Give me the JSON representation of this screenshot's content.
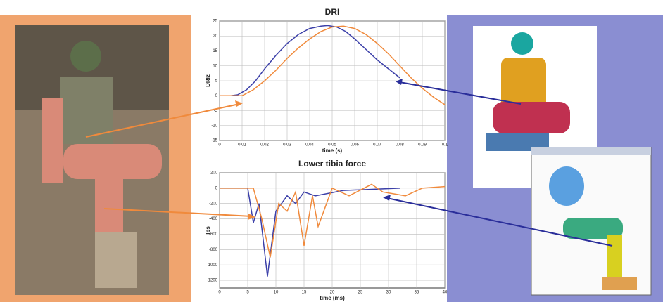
{
  "chart_data": [
    {
      "type": "line",
      "title": "DRI",
      "x_label": "time (s)",
      "y_label": "DRIz",
      "xlim": [
        0,
        0.1
      ],
      "xticks": [
        0,
        0.01,
        0.02,
        0.03,
        0.04,
        0.05,
        0.06,
        0.07,
        0.08,
        0.09,
        0.1
      ],
      "ylim": [
        -15,
        25
      ],
      "yticks": [
        25,
        20,
        15,
        10,
        5,
        0,
        -5,
        -10,
        -15
      ],
      "grid": true,
      "series": [
        {
          "color": "#3b3fa8",
          "x": [
            0,
            0.005,
            0.008,
            0.012,
            0.016,
            0.02,
            0.025,
            0.03,
            0.035,
            0.04,
            0.045,
            0.048,
            0.052,
            0.056,
            0.06,
            0.065,
            0.07,
            0.075,
            0.08
          ],
          "values": [
            0,
            0,
            0.3,
            2,
            5,
            9,
            13.5,
            17.5,
            20.5,
            22.5,
            23.3,
            23.5,
            23,
            21.5,
            19,
            15.5,
            12,
            9,
            6
          ]
        },
        {
          "color": "#f08a3c",
          "x": [
            0,
            0.01,
            0.015,
            0.02,
            0.025,
            0.03,
            0.035,
            0.04,
            0.045,
            0.05,
            0.055,
            0.06,
            0.065,
            0.07,
            0.075,
            0.08,
            0.085,
            0.09,
            0.095,
            0.1
          ],
          "values": [
            0,
            0,
            2,
            5,
            8.5,
            12.5,
            16,
            19,
            21.5,
            23,
            23.3,
            22.5,
            20.5,
            17.5,
            14,
            10,
            6,
            2.5,
            -0.5,
            -3
          ]
        }
      ]
    },
    {
      "type": "line",
      "title": "Lower tibia force",
      "x_label": "time (ms)",
      "y_label": "lbs",
      "xlim": [
        0,
        40
      ],
      "xticks": [
        0,
        5,
        10,
        15,
        20,
        25,
        30,
        35,
        40
      ],
      "ylim": [
        -1300,
        200
      ],
      "yticks": [
        200,
        0,
        -200,
        -400,
        -600,
        -800,
        -1000,
        -1200
      ],
      "grid": true,
      "series": [
        {
          "color": "#3b3fa8",
          "x": [
            0,
            5,
            6,
            7,
            8.5,
            10,
            12,
            13.5,
            15,
            17,
            22,
            32
          ],
          "values": [
            0,
            0,
            -450,
            -200,
            -1150,
            -300,
            -100,
            -200,
            -50,
            -100,
            -30,
            0
          ]
        },
        {
          "color": "#f08a3c",
          "x": [
            0,
            6,
            7.5,
            9,
            10.5,
            12,
            13.5,
            15,
            16.5,
            17.5,
            20,
            23,
            27,
            29,
            33,
            36,
            40
          ],
          "values": [
            0,
            0,
            -400,
            -900,
            -200,
            -300,
            -50,
            -750,
            -100,
            -500,
            0,
            -100,
            50,
            -50,
            -100,
            0,
            20
          ]
        }
      ]
    }
  ]
}
